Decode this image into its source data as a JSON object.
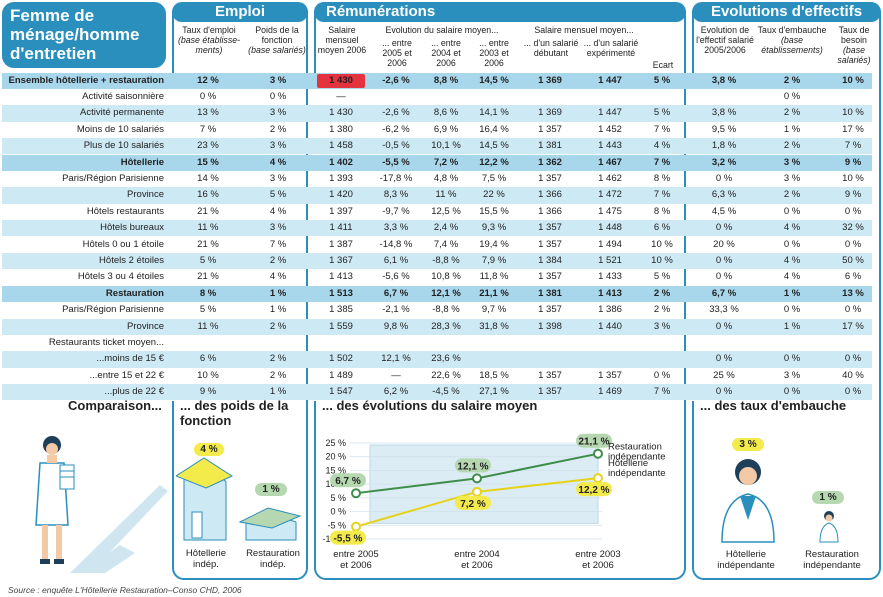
{
  "title": "Femme de ménage/homme d'entretien",
  "sections": {
    "emploi": "Emploi",
    "remunerations": "Rémunérations",
    "evolutions": "Evolutions d'effectifs"
  },
  "headers": {
    "taux_emploi": "Taux d'emploi",
    "taux_emploi_sub": "(base établisse-ments)",
    "poids": "Poids de la fonction",
    "poids_sub": "(base salariés)",
    "salaire_moyen": "Salaire mensuel moyen 2006",
    "evol_group": "Evolution du salaire moyen...",
    "evol_2005": "... entre 2005 et 2006",
    "evol_2004": "... entre 2004 et 2006",
    "evol_2003": "... entre 2003 et 2006",
    "salaire_group": "Salaire mensuel moyen...",
    "debutant": "... d'un salarié débutant",
    "experimente": "... d'un salarié expérimenté",
    "ecart": "Ecart",
    "evol_effectif": "Evolution de l'effectif salarié 2005/2006",
    "embauche": "Taux d'embauche",
    "embauche_sub": "(base établissements)",
    "besoin": "Taux de besoin",
    "besoin_sub": "(base salariés)"
  },
  "rows": [
    {
      "label": "Ensemble hôtellerie + restauration",
      "v": [
        "12 %",
        "3 %",
        "1 430",
        "-2,6 %",
        "8,8 %",
        "14,5 %",
        "1 369",
        "1 447",
        "5 %",
        "3,8 %",
        "2 %",
        "10 %"
      ],
      "style": "total"
    },
    {
      "label": "Activité saisonnière",
      "v": [
        "0 %",
        "0 %",
        "—",
        "",
        "",
        "",
        "",
        "",
        "",
        "",
        "0 %",
        ""
      ],
      "style": ""
    },
    {
      "label": "Activité permanente",
      "v": [
        "13 %",
        "3 %",
        "1 430",
        "-2,6 %",
        "8,6 %",
        "14,1 %",
        "1 369",
        "1 447",
        "5 %",
        "3,8 %",
        "2 %",
        "10 %"
      ],
      "style": "band"
    },
    {
      "label": "Moins de 10 salariés",
      "v": [
        "7 %",
        "2 %",
        "1 380",
        "-6,2 %",
        "6,9 %",
        "16,4 %",
        "1 357",
        "1 452",
        "7 %",
        "9,5 %",
        "1 %",
        "17 %"
      ],
      "style": ""
    },
    {
      "label": "Plus de 10 salariés",
      "v": [
        "23 %",
        "3 %",
        "1 458",
        "-0,5 %",
        "10,1 %",
        "14,5 %",
        "1 381",
        "1 443",
        "4 %",
        "1,8 %",
        "2 %",
        "7 %"
      ],
      "style": "band"
    },
    {
      "label": "Hôtellerie",
      "v": [
        "15 %",
        "4 %",
        "1 402",
        "-5,5 %",
        "7,2 %",
        "12,2 %",
        "1 362",
        "1 467",
        "7 %",
        "3,2 %",
        "3 %",
        "9 %"
      ],
      "style": "total"
    },
    {
      "label": "Paris/Région Parisienne",
      "v": [
        "14 %",
        "3 %",
        "1 393",
        "-17,8 %",
        "4,8 %",
        "7,5 %",
        "1 357",
        "1 462",
        "8 %",
        "0 %",
        "3 %",
        "10 %"
      ],
      "style": ""
    },
    {
      "label": "Province",
      "v": [
        "16 %",
        "5 %",
        "1 420",
        "8,3 %",
        "11 %",
        "22 %",
        "1 366",
        "1 472",
        "7 %",
        "6,3 %",
        "2 %",
        "9 %"
      ],
      "style": "band"
    },
    {
      "label": "Hôtels restaurants",
      "v": [
        "21 %",
        "4 %",
        "1 397",
        "-9,7 %",
        "12,5 %",
        "15,5 %",
        "1 366",
        "1 475",
        "8 %",
        "4,5 %",
        "0 %",
        "0 %"
      ],
      "style": ""
    },
    {
      "label": "Hôtels bureaux",
      "v": [
        "11 %",
        "3 %",
        "1 411",
        "3,3 %",
        "2,4 %",
        "9,3 %",
        "1 357",
        "1 448",
        "6 %",
        "0 %",
        "4 %",
        "32 %"
      ],
      "style": "band"
    },
    {
      "label": "Hôtels 0 ou 1 étoile",
      "v": [
        "21 %",
        "7 %",
        "1 387",
        "-14,8 %",
        "7,4 %",
        "19,4 %",
        "1 357",
        "1 494",
        "10 %",
        "20 %",
        "0 %",
        "0 %"
      ],
      "style": ""
    },
    {
      "label": "Hôtels 2 étoiles",
      "v": [
        "5 %",
        "2 %",
        "1 367",
        "6,1 %",
        "-8,8 %",
        "7,9 %",
        "1 384",
        "1 521",
        "10 %",
        "0 %",
        "4 %",
        "50 %"
      ],
      "style": "band"
    },
    {
      "label": "Hôtels 3 ou 4 étoiles",
      "v": [
        "21 %",
        "4 %",
        "1 413",
        "-5,6 %",
        "10,8 %",
        "11,8 %",
        "1 357",
        "1 433",
        "5 %",
        "0 %",
        "4 %",
        "6 %"
      ],
      "style": ""
    },
    {
      "label": "Restauration",
      "v": [
        "8 %",
        "1 %",
        "1 513",
        "6,7 %",
        "12,1 %",
        "21,1 %",
        "1 381",
        "1 413",
        "2 %",
        "6,7 %",
        "1 %",
        "13 %"
      ],
      "style": "total"
    },
    {
      "label": "Paris/Région Parisienne",
      "v": [
        "5 %",
        "1 %",
        "1 385",
        "-2,1 %",
        "-8,8 %",
        "9,7 %",
        "1 357",
        "1 386",
        "2 %",
        "33,3 %",
        "0 %",
        "0 %"
      ],
      "style": ""
    },
    {
      "label": "Province",
      "v": [
        "11 %",
        "2 %",
        "1 559",
        "9,8 %",
        "28,3 %",
        "31,8 %",
        "1 398",
        "1 440",
        "3 %",
        "0 %",
        "1 %",
        "17 %"
      ],
      "style": "band"
    },
    {
      "label": "Restaurants ticket moyen...",
      "v": [
        "",
        "",
        "",
        "",
        "",
        "",
        "",
        "",
        "",
        "",
        "",
        ""
      ],
      "style": ""
    },
    {
      "label": "...moins de 15 €",
      "v": [
        "6 %",
        "2 %",
        "1 502",
        "12,1 %",
        "23,6 %",
        "",
        "",
        "",
        "",
        "0 %",
        "0 %",
        "0 %"
      ],
      "style": "band"
    },
    {
      "label": "...entre 15 et 22 €",
      "v": [
        "10 %",
        "2 %",
        "1 489",
        "—",
        "22,6 %",
        "18,5 %",
        "1 357",
        "1 357",
        "0 %",
        "25 %",
        "3 %",
        "40 %"
      ],
      "style": ""
    },
    {
      "label": "...plus de 22 €",
      "v": [
        "9 %",
        "1 %",
        "1 547",
        "6,2 %",
        "-4,5 %",
        "27,1 %",
        "1 357",
        "1 469",
        "7 %",
        "0 %",
        "0 %",
        "0 %"
      ],
      "style": "band"
    }
  ],
  "bottom": {
    "comparaison": "Comparaison...",
    "poids_title": "... des poids de la fonction",
    "evol_title": "... des évolutions du salaire moyen",
    "embauche_title": "... des taux d'embauche",
    "poids_hotel_value": "4 %",
    "poids_hotel_label": "Hôtellerie indép.",
    "poids_resto_value": "1 %",
    "poids_resto_label": "Restauration indép.",
    "embauche_hotel_value": "3 %",
    "embauche_hotel_label": "Hôtellerie indépendante",
    "embauche_resto_value": "1 %",
    "embauche_resto_label": "Restauration indépendante"
  },
  "chart_data": {
    "type": "line",
    "categories": [
      "entre 2005 et 2006",
      "entre 2004 et 2006",
      "entre 2003 et 2006"
    ],
    "series": [
      {
        "name": "Restauration indépendante",
        "values": [
          6.7,
          12.1,
          21.1
        ],
        "color": "#3f8d4a",
        "labels": [
          "6,7 %",
          "12,1 %",
          "21,1 %"
        ]
      },
      {
        "name": "Hôtellerie indépendante",
        "values": [
          -5.5,
          7.2,
          12.2
        ],
        "color": "#e7d21a",
        "labels": [
          "-5,5 %",
          "7,2 %",
          "12,2 %"
        ]
      }
    ],
    "yticks": [
      "25 %",
      "20 %",
      "15 %",
      "10 %",
      "5 %",
      "0 %",
      "-5 %",
      "-10 %"
    ],
    "ylim": [
      -10,
      25
    ]
  },
  "source": "Source : enquête L'Hôtellerie Restauration–Conso CHD, 2006",
  "colors": {
    "blue": "#2a8fbd",
    "band": "#cde9f4",
    "red": "#e5323f",
    "yellow": "#f3ea4b",
    "green": "#b6d8b0"
  }
}
